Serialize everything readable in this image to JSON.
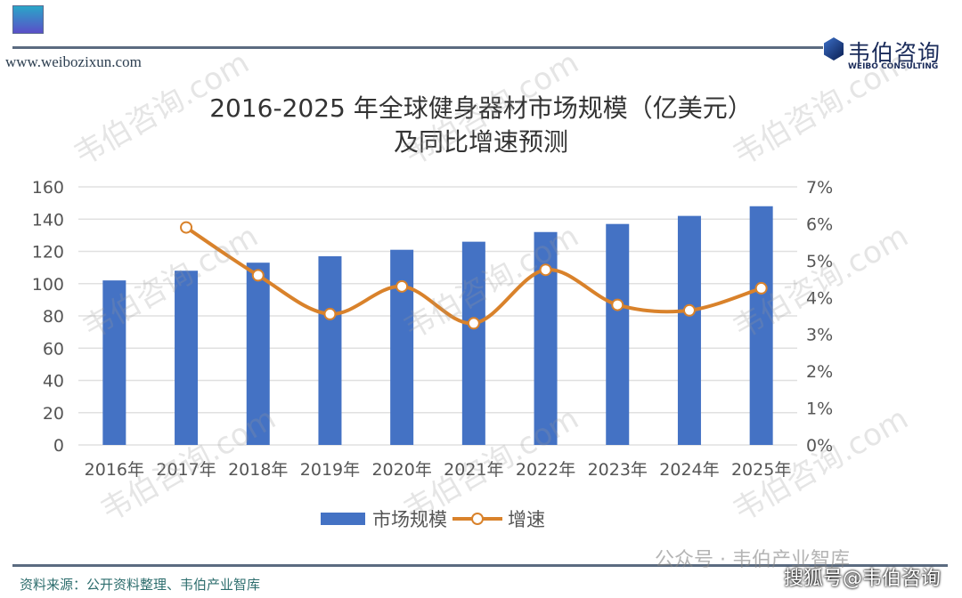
{
  "header": {
    "site": "www.weibozixun.com",
    "logo_cn": "韦伯咨询",
    "logo_en": "WEIBO CONSULTING"
  },
  "watermark": "韦伯咨询.com",
  "chart_data": {
    "type": "bar+line",
    "title_line1": "2016-2025 年全球健身器材市场规模（亿美元）",
    "title_line2": "及同比增速预测",
    "categories": [
      "2016年",
      "2017年",
      "2018年",
      "2019年",
      "2020年",
      "2021年",
      "2022年",
      "2023年",
      "2024年",
      "2025年"
    ],
    "series": [
      {
        "name": "市场规模",
        "type": "bar",
        "axis": "left",
        "color": "#4472c4",
        "values": [
          102,
          108,
          113,
          117,
          121,
          126,
          132,
          137,
          142,
          148
        ]
      },
      {
        "name": "增速",
        "type": "line",
        "axis": "right",
        "color": "#d9822b",
        "values": [
          null,
          5.9,
          4.6,
          3.55,
          4.3,
          3.3,
          4.75,
          3.8,
          3.65,
          4.25
        ]
      }
    ],
    "left_axis": {
      "ylim": [
        0,
        160
      ],
      "ticks": [
        "0",
        "20",
        "40",
        "60",
        "80",
        "100",
        "120",
        "140",
        "160"
      ]
    },
    "right_axis": {
      "ylim": [
        0,
        7
      ],
      "ticks": [
        "0%",
        "1%",
        "2%",
        "3%",
        "4%",
        "5%",
        "6%",
        "7%"
      ]
    },
    "grid": true,
    "legend_position": "bottom"
  },
  "footer": {
    "source": "资料来源：公开资料整理、韦伯产业智库",
    "gzh": "公众号 · 韦伯产业智库",
    "sohu": "搜狐号@韦伯咨询"
  }
}
